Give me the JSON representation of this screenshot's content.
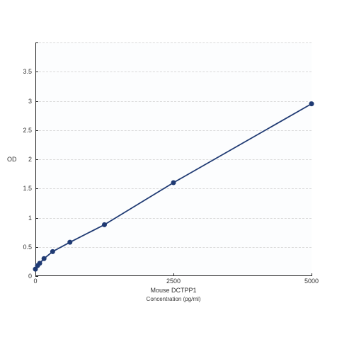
{
  "chart": {
    "type": "line-scatter",
    "background_color": "#ffffff",
    "plot_background_color": "#fcfdfe",
    "axis_color": "#222222",
    "grid_color": "#d9d9d9",
    "grid_dash": "4,4",
    "tick_label_color": "#333333",
    "tick_label_fontsize": 9,
    "title_fontsize": 9,
    "line_color": "#1f3a73",
    "line_width": 1.8,
    "marker_color": "#1f3a73",
    "marker_radius": 3.5,
    "xlim": [
      0,
      5000
    ],
    "ylim": [
      0,
      4
    ],
    "x_ticks": [
      0,
      2500,
      5000
    ],
    "x_tick_labels": [
      "0",
      "2500",
      "5000"
    ],
    "x_title_line1": "Mouse DCTPP1",
    "x_title_line2": "Concentration (pg/ml)",
    "y_ticks": [
      0,
      0.5,
      1,
      1.5,
      2,
      2.5,
      3,
      3.5,
      4
    ],
    "y_tick_labels": [
      "0",
      "0.5",
      "1",
      "1.5",
      "2",
      "2.5",
      "3",
      "3.5",
      ""
    ],
    "y_title": "OD",
    "grid_positions": [
      0.5,
      1,
      1.5,
      2,
      2.5,
      3,
      3.5,
      4
    ],
    "series": {
      "x": [
        0,
        39,
        78,
        156,
        312,
        625,
        1250,
        2500,
        5000
      ],
      "y": [
        0.12,
        0.18,
        0.22,
        0.3,
        0.42,
        0.58,
        0.88,
        1.6,
        2.95
      ]
    }
  }
}
